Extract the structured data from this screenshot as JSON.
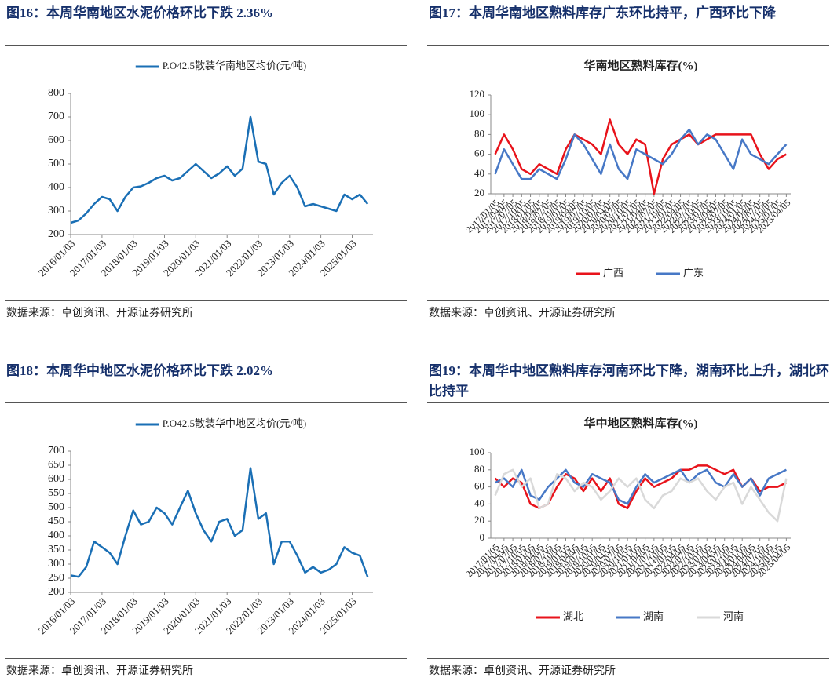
{
  "chart_data": [
    {
      "type": "line",
      "caption": "图16：本周华南地区水泥价格环比下跌 2.36%",
      "source": "数据来源：卓创资讯、开源证券研究所",
      "legend": "top",
      "x": [
        "2016/01/03",
        "2016/04/03",
        "2016/07/03",
        "2016/10/03",
        "2017/01/03",
        "2017/04/03",
        "2017/07/03",
        "2017/10/03",
        "2018/01/03",
        "2018/04/03",
        "2018/07/03",
        "2018/10/03",
        "2019/01/03",
        "2019/04/03",
        "2019/07/03",
        "2019/10/03",
        "2020/01/03",
        "2020/04/03",
        "2020/07/03",
        "2020/10/03",
        "2021/01/03",
        "2021/04/03",
        "2021/07/03",
        "2021/10/03",
        "2022/01/03",
        "2022/04/03",
        "2022/07/03",
        "2022/10/03",
        "2023/01/03",
        "2023/04/03",
        "2023/07/03",
        "2023/10/03",
        "2024/01/03",
        "2024/04/03",
        "2024/07/03",
        "2024/10/03",
        "2025/01/03",
        "2025/04/03",
        "2025/07/03"
      ],
      "series": [
        {
          "name": "P.O42.5散装华南地区均价(元/吨)",
          "color": "#1a6fb5",
          "values": [
            250,
            260,
            290,
            330,
            360,
            350,
            300,
            360,
            400,
            405,
            420,
            440,
            450,
            430,
            440,
            470,
            500,
            470,
            440,
            460,
            490,
            450,
            480,
            700,
            510,
            500,
            370,
            420,
            450,
            400,
            320,
            330,
            320,
            310,
            300,
            370,
            350,
            370,
            330
          ]
        }
      ],
      "xlim": [
        "2016/01/03",
        "2025/09/03"
      ],
      "xticks": [
        "2016/01/03",
        "2017/01/03",
        "2018/01/03",
        "2019/01/03",
        "2020/01/03",
        "2021/01/03",
        "2022/01/03",
        "2023/01/03",
        "2024/01/03",
        "2025/01/03"
      ],
      "ylim": [
        200,
        800
      ],
      "yticks": [
        200,
        300,
        400,
        500,
        600,
        700,
        800
      ]
    },
    {
      "type": "line",
      "caption": "图17：本周华南地区熟料库存广东环比持平，广西环比下降",
      "title": "华南地区熟料库存(%)",
      "source": "数据来源：卓创资讯、开源证券研究所",
      "legend": "bottom",
      "categories": [
        "2017/01/05",
        "2017/04/05",
        "2017/07/05",
        "2017/10/05",
        "2018/01/05",
        "2018/04/05",
        "2018/07/05",
        "2018/10/05",
        "2019/01/05",
        "2019/04/05",
        "2019/07/05",
        "2019/10/05",
        "2020/01/05",
        "2020/04/05",
        "2020/07/05",
        "2020/10/05",
        "2021/01/05",
        "2021/04/05",
        "2021/07/05",
        "2021/10/05",
        "2022/01/05",
        "2022/04/05",
        "2022/07/05",
        "2022/10/05",
        "2023/01/05",
        "2023/04/05",
        "2023/07/05",
        "2023/10/05",
        "2024/01/05",
        "2024/04/05",
        "2024/07/05",
        "2024/10/05",
        "2025/01/05",
        "2025/04/05"
      ],
      "series": [
        {
          "name": "广西",
          "color": "#e8131b",
          "values": [
            60,
            80,
            65,
            45,
            40,
            50,
            45,
            40,
            65,
            80,
            75,
            70,
            60,
            95,
            70,
            60,
            75,
            70,
            20,
            55,
            70,
            75,
            80,
            70,
            75,
            80,
            80,
            80,
            80,
            80,
            60,
            45,
            55,
            60
          ]
        },
        {
          "name": "广东",
          "color": "#4778c6",
          "values": [
            40,
            65,
            50,
            35,
            35,
            45,
            40,
            35,
            55,
            80,
            70,
            55,
            40,
            70,
            45,
            35,
            65,
            60,
            55,
            50,
            60,
            75,
            85,
            70,
            80,
            75,
            60,
            45,
            75,
            60,
            55,
            50,
            60,
            70
          ]
        }
      ],
      "ylim": [
        20,
        120
      ],
      "yticks": [
        20,
        40,
        60,
        80,
        100,
        120
      ]
    },
    {
      "type": "line",
      "caption": "图18：本周华中地区水泥价格环比下跌 2.02%",
      "source": "数据来源：卓创资讯、开源证券研究所",
      "legend": "top",
      "x": [
        "2016/01/03",
        "2016/04/03",
        "2016/07/03",
        "2016/10/03",
        "2017/01/03",
        "2017/04/03",
        "2017/07/03",
        "2017/10/03",
        "2018/01/03",
        "2018/04/03",
        "2018/07/03",
        "2018/10/03",
        "2019/01/03",
        "2019/04/03",
        "2019/07/03",
        "2019/10/03",
        "2020/01/03",
        "2020/04/03",
        "2020/07/03",
        "2020/10/03",
        "2021/01/03",
        "2021/04/03",
        "2021/07/03",
        "2021/10/03",
        "2022/01/03",
        "2022/04/03",
        "2022/07/03",
        "2022/10/03",
        "2023/01/03",
        "2023/04/03",
        "2023/07/03",
        "2023/10/03",
        "2024/01/03",
        "2024/04/03",
        "2024/07/03",
        "2024/10/03",
        "2025/01/03",
        "2025/04/03",
        "2025/07/03"
      ],
      "series": [
        {
          "name": "P.O42.5散装华中地区均价(元/吨)",
          "color": "#1a6fb5",
          "values": [
            260,
            255,
            290,
            380,
            360,
            340,
            300,
            400,
            490,
            440,
            450,
            500,
            480,
            440,
            500,
            560,
            480,
            420,
            380,
            450,
            460,
            400,
            420,
            640,
            460,
            480,
            300,
            380,
            380,
            330,
            270,
            290,
            270,
            280,
            300,
            360,
            340,
            330,
            255
          ]
        }
      ],
      "xlim": [
        "2016/01/03",
        "2025/09/03"
      ],
      "xticks": [
        "2016/01/03",
        "2017/01/03",
        "2018/01/03",
        "2019/01/03",
        "2020/01/03",
        "2021/01/03",
        "2022/01/03",
        "2023/01/03",
        "2024/01/03",
        "2025/01/03"
      ],
      "ylim": [
        200,
        700
      ],
      "yticks": [
        200,
        250,
        300,
        350,
        400,
        450,
        500,
        550,
        600,
        650,
        700
      ]
    },
    {
      "type": "line",
      "caption": "图19：本周华中地区熟料库存河南环比下降，湖南环比上升，湖北环比持平",
      "title": "华中地区熟料库存(%)",
      "source": "数据来源：卓创资讯、开源证券研究所",
      "legend": "bottom",
      "categories": [
        "2017/01/05",
        "2017/04/05",
        "2017/07/05",
        "2017/10/05",
        "2018/01/05",
        "2018/04/05",
        "2018/07/05",
        "2018/10/05",
        "2019/01/05",
        "2019/04/05",
        "2019/07/05",
        "2019/10/05",
        "2020/01/05",
        "2020/04/05",
        "2020/07/05",
        "2020/10/05",
        "2021/01/05",
        "2021/04/05",
        "2021/07/05",
        "2021/10/05",
        "2022/01/05",
        "2022/04/05",
        "2022/07/05",
        "2022/10/05",
        "2023/01/05",
        "2023/04/05",
        "2023/07/05",
        "2023/10/05",
        "2024/01/05",
        "2024/04/05",
        "2024/07/05",
        "2024/10/05",
        "2025/01/05",
        "2025/04/05"
      ],
      "series": [
        {
          "name": "湖北",
          "color": "#e8131b",
          "values": [
            70,
            60,
            70,
            65,
            40,
            35,
            40,
            60,
            75,
            70,
            55,
            70,
            55,
            70,
            40,
            35,
            55,
            70,
            60,
            65,
            70,
            80,
            80,
            85,
            85,
            80,
            75,
            80,
            60,
            70,
            55,
            60,
            60,
            65
          ]
        },
        {
          "name": "湖南",
          "color": "#4778c6",
          "values": [
            65,
            70,
            60,
            80,
            50,
            45,
            60,
            70,
            80,
            65,
            60,
            75,
            70,
            65,
            45,
            40,
            60,
            75,
            65,
            70,
            75,
            80,
            65,
            75,
            80,
            65,
            60,
            75,
            60,
            70,
            50,
            70,
            75,
            80
          ]
        },
        {
          "name": "河南",
          "color": "#d9d9d9",
          "values": [
            50,
            75,
            80,
            60,
            70,
            35,
            40,
            75,
            70,
            55,
            65,
            60,
            45,
            55,
            70,
            60,
            70,
            45,
            35,
            50,
            55,
            70,
            65,
            70,
            55,
            45,
            60,
            65,
            40,
            60,
            45,
            30,
            20,
            70
          ]
        }
      ],
      "ylim": [
        0,
        100
      ],
      "yticks": [
        0,
        20,
        40,
        60,
        80,
        100
      ]
    }
  ]
}
